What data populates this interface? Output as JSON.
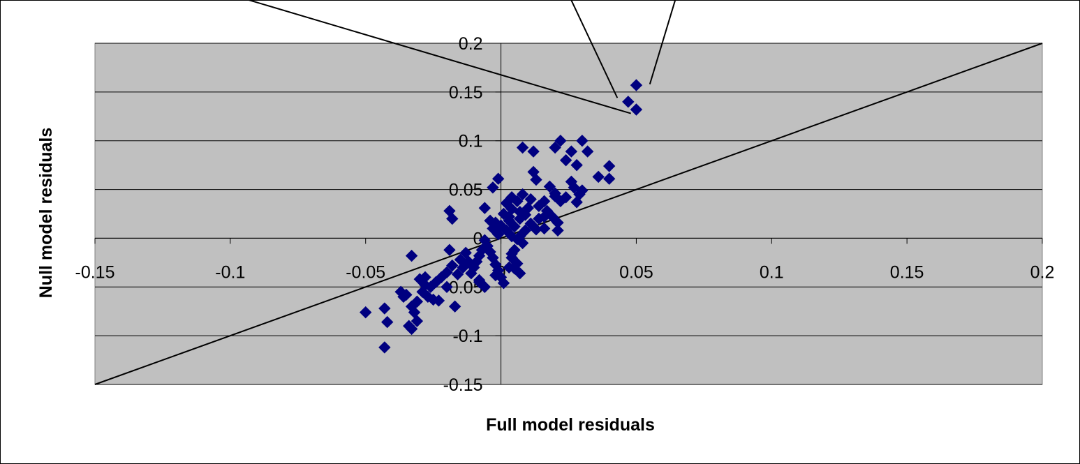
{
  "colors": {
    "plot_background": "#c0c0c0",
    "gridline": "#000000",
    "marker": "#000080",
    "line": "#000000",
    "frame": "#000000"
  },
  "chart_data": {
    "type": "scatter",
    "title": "",
    "xlabel": "Full model residuals",
    "ylabel": "Null model residuals",
    "xlim": [
      -0.15,
      0.2
    ],
    "ylim": [
      -0.15,
      0.2
    ],
    "x_ticks": [
      "-0.15",
      "-0.1",
      "-0.05",
      "0",
      "0.05",
      "0.1",
      "0.15",
      "0.2"
    ],
    "y_ticks": [
      "-0.15",
      "-0.1",
      "-0.05",
      "0",
      "0.05",
      "0.1",
      "0.15",
      "0.2"
    ],
    "grid": "horizontal major gridlines",
    "legend": "none",
    "marker": "diamond",
    "reference_line": {
      "type": "identity y = x",
      "from": [
        -0.15,
        -0.15
      ],
      "to": [
        0.2,
        0.2
      ]
    },
    "annotation_lines": [
      {
        "from": [
          -0.1,
          0.25
        ],
        "to": [
          0.048,
          0.128
        ]
      },
      {
        "from": [
          0.025,
          0.25
        ],
        "to": [
          0.043,
          0.144
        ]
      },
      {
        "from": [
          0.065,
          0.25
        ],
        "to": [
          0.055,
          0.158
        ]
      }
    ],
    "points": [
      {
        "x": 0.047,
        "y": 0.14
      },
      {
        "x": 0.05,
        "y": 0.132
      },
      {
        "x": 0.05,
        "y": 0.157
      },
      {
        "x": 0.008,
        "y": 0.093
      },
      {
        "x": 0.012,
        "y": 0.089
      },
      {
        "x": 0.02,
        "y": 0.093
      },
      {
        "x": 0.022,
        "y": 0.1
      },
      {
        "x": 0.024,
        "y": 0.08
      },
      {
        "x": 0.026,
        "y": 0.089
      },
      {
        "x": 0.028,
        "y": 0.075
      },
      {
        "x": 0.03,
        "y": 0.1
      },
      {
        "x": 0.032,
        "y": 0.089
      },
      {
        "x": 0.036,
        "y": 0.063
      },
      {
        "x": 0.04,
        "y": 0.074
      },
      {
        "x": 0.04,
        "y": 0.061
      },
      {
        "x": 0.012,
        "y": 0.068
      },
      {
        "x": 0.013,
        "y": 0.06
      },
      {
        "x": 0.018,
        "y": 0.053
      },
      {
        "x": 0.02,
        "y": 0.046
      },
      {
        "x": 0.022,
        "y": 0.038
      },
      {
        "x": 0.024,
        "y": 0.042
      },
      {
        "x": 0.026,
        "y": 0.058
      },
      {
        "x": 0.027,
        "y": 0.052
      },
      {
        "x": 0.029,
        "y": 0.045
      },
      {
        "x": 0.03,
        "y": 0.049
      },
      {
        "x": 0.028,
        "y": 0.037
      },
      {
        "x": 0.016,
        "y": 0.038
      },
      {
        "x": 0.014,
        "y": 0.033
      },
      {
        "x": 0.017,
        "y": 0.028
      },
      {
        "x": 0.019,
        "y": 0.022
      },
      {
        "x": 0.021,
        "y": 0.016
      },
      {
        "x": 0.016,
        "y": 0.01
      },
      {
        "x": 0.021,
        "y": 0.008
      },
      {
        "x": 0.011,
        "y": 0.04
      },
      {
        "x": 0.008,
        "y": 0.045
      },
      {
        "x": 0.006,
        "y": 0.038
      },
      {
        "x": 0.004,
        "y": 0.03
      },
      {
        "x": 0.002,
        "y": 0.036
      },
      {
        "x": 0.001,
        "y": 0.025
      },
      {
        "x": 0.003,
        "y": 0.018
      },
      {
        "x": 0.005,
        "y": 0.012
      },
      {
        "x": 0.007,
        "y": 0.02
      },
      {
        "x": 0.009,
        "y": 0.024
      },
      {
        "x": 0.011,
        "y": 0.015
      },
      {
        "x": 0.013,
        "y": 0.009
      },
      {
        "x": -0.003,
        "y": 0.052
      },
      {
        "x": -0.001,
        "y": 0.061
      },
      {
        "x": -0.006,
        "y": 0.031
      },
      {
        "x": -0.004,
        "y": 0.018
      },
      {
        "x": -0.003,
        "y": 0.01
      },
      {
        "x": -0.001,
        "y": 0.004
      },
      {
        "x": 0.0,
        "y": 0.013
      },
      {
        "x": 0.002,
        "y": 0.008
      },
      {
        "x": -0.018,
        "y": 0.02
      },
      {
        "x": -0.019,
        "y": 0.028
      },
      {
        "x": 0.004,
        "y": 0.002
      },
      {
        "x": 0.006,
        "y": -0.001
      },
      {
        "x": 0.008,
        "y": -0.005
      },
      {
        "x": 0.005,
        "y": -0.012
      },
      {
        "x": 0.004,
        "y": -0.02
      },
      {
        "x": 0.006,
        "y": -0.026
      },
      {
        "x": 0.005,
        "y": -0.031
      },
      {
        "x": 0.007,
        "y": -0.036
      },
      {
        "x": 0.003,
        "y": -0.03
      },
      {
        "x": 0.001,
        "y": -0.046
      },
      {
        "x": 0.0,
        "y": -0.04
      },
      {
        "x": -0.001,
        "y": -0.033
      },
      {
        "x": -0.002,
        "y": -0.027
      },
      {
        "x": -0.003,
        "y": -0.02
      },
      {
        "x": -0.004,
        "y": -0.014
      },
      {
        "x": -0.005,
        "y": -0.008
      },
      {
        "x": -0.006,
        "y": -0.002
      },
      {
        "x": -0.007,
        "y": -0.012
      },
      {
        "x": -0.008,
        "y": -0.018
      },
      {
        "x": -0.009,
        "y": -0.024
      },
      {
        "x": -0.01,
        "y": -0.03
      },
      {
        "x": -0.011,
        "y": -0.036
      },
      {
        "x": -0.008,
        "y": -0.043
      },
      {
        "x": -0.006,
        "y": -0.05
      },
      {
        "x": -0.012,
        "y": -0.024
      },
      {
        "x": -0.013,
        "y": -0.015
      },
      {
        "x": -0.015,
        "y": -0.022
      },
      {
        "x": -0.014,
        "y": -0.03
      },
      {
        "x": -0.016,
        "y": -0.037
      },
      {
        "x": -0.018,
        "y": -0.028
      },
      {
        "x": -0.02,
        "y": -0.035
      },
      {
        "x": -0.022,
        "y": -0.04
      },
      {
        "x": -0.024,
        "y": -0.045
      },
      {
        "x": -0.026,
        "y": -0.05
      },
      {
        "x": -0.028,
        "y": -0.048
      },
      {
        "x": -0.02,
        "y": -0.05
      },
      {
        "x": -0.017,
        "y": -0.07
      },
      {
        "x": -0.025,
        "y": -0.063
      },
      {
        "x": -0.027,
        "y": -0.06
      },
      {
        "x": -0.029,
        "y": -0.055
      },
      {
        "x": -0.031,
        "y": -0.065
      },
      {
        "x": -0.033,
        "y": -0.07
      },
      {
        "x": -0.035,
        "y": -0.058
      },
      {
        "x": -0.037,
        "y": -0.055
      },
      {
        "x": -0.03,
        "y": -0.042
      },
      {
        "x": -0.028,
        "y": -0.04
      },
      {
        "x": -0.033,
        "y": -0.018
      },
      {
        "x": -0.032,
        "y": -0.076
      },
      {
        "x": -0.034,
        "y": -0.09
      },
      {
        "x": -0.033,
        "y": -0.093
      },
      {
        "x": -0.031,
        "y": -0.085
      },
      {
        "x": -0.036,
        "y": -0.06
      },
      {
        "x": -0.043,
        "y": -0.072
      },
      {
        "x": -0.05,
        "y": -0.076
      },
      {
        "x": -0.042,
        "y": -0.086
      },
      {
        "x": -0.043,
        "y": -0.112
      },
      {
        "x": -0.023,
        "y": -0.064
      },
      {
        "x": -0.019,
        "y": -0.012
      },
      {
        "x": -0.008,
        "y": -0.045
      },
      {
        "x": -0.002,
        "y": -0.038
      },
      {
        "x": 0.004,
        "y": -0.016
      },
      {
        "x": 0.007,
        "y": 0.002
      },
      {
        "x": 0.009,
        "y": 0.008
      },
      {
        "x": 0.01,
        "y": 0.031
      },
      {
        "x": 0.014,
        "y": 0.02
      },
      {
        "x": 0.016,
        "y": 0.022
      },
      {
        "x": 0.003,
        "y": 0.022
      },
      {
        "x": -0.002,
        "y": 0.016
      },
      {
        "x": 0.007,
        "y": 0.027
      },
      {
        "x": 0.004,
        "y": 0.042
      },
      {
        "x": 0.02,
        "y": 0.043
      }
    ]
  }
}
